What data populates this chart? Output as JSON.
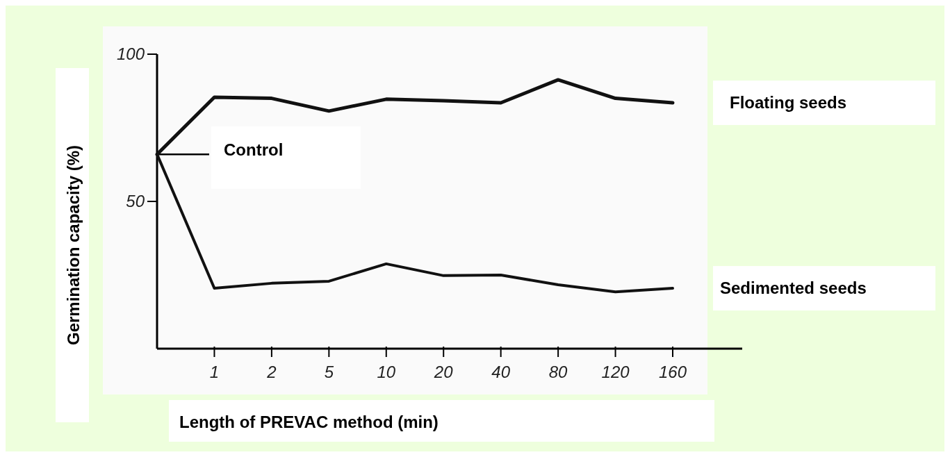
{
  "chart_data": {
    "type": "line",
    "xlabel": "Length of PREVAC method (min)",
    "ylabel": "Germination capacity (%)",
    "categories": [
      null,
      "1",
      "2",
      "5",
      "10",
      "20",
      "40",
      "80",
      "120",
      "160"
    ],
    "ylim": [
      0,
      100
    ],
    "yticks": [
      50,
      100
    ],
    "grid": false,
    "marker": "none",
    "line_style": "solid",
    "ref_lines": [
      {
        "axis": "y",
        "value": 66,
        "label": "Control"
      }
    ],
    "series": [
      {
        "name": "Floating seeds",
        "color": "#111111",
        "values": [
          66,
          85.4,
          85,
          80.7,
          84.7,
          84.2,
          83.5,
          91.3,
          85,
          83.5
        ]
      },
      {
        "name": "Sedimented seeds",
        "color": "#111111",
        "values": [
          66,
          20.5,
          22.2,
          22.9,
          28.8,
          24.8,
          25,
          21.7,
          19.3,
          20.5
        ]
      }
    ]
  }
}
